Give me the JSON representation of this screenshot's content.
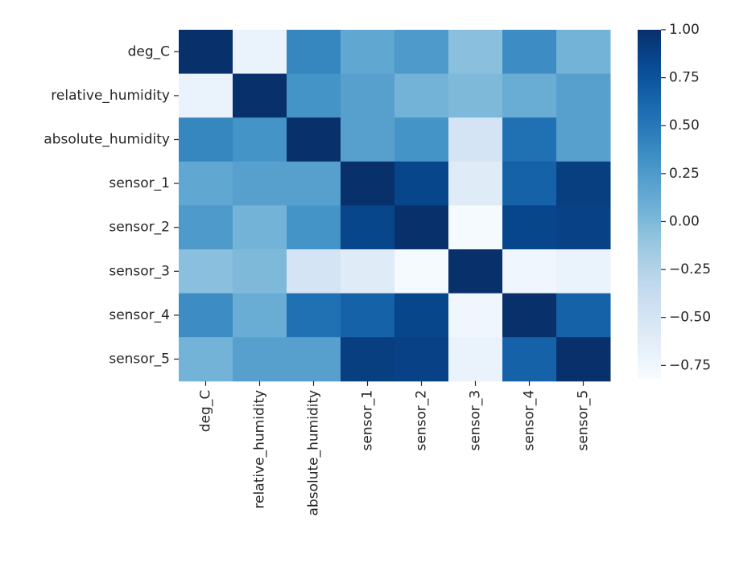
{
  "chart_data": {
    "type": "heatmap",
    "title": "",
    "xlabel": "",
    "ylabel": "",
    "row_labels": [
      "deg_C",
      "relative_humidity",
      "absolute_humidity",
      "sensor_1",
      "sensor_2",
      "sensor_3",
      "sensor_4",
      "sensor_5"
    ],
    "col_labels": [
      "deg_C",
      "relative_humidity",
      "absolute_humidity",
      "sensor_1",
      "sensor_2",
      "sensor_3",
      "sensor_4",
      "sensor_5"
    ],
    "values": [
      [
        1.0,
        -0.7,
        0.4,
        0.15,
        0.25,
        -0.05,
        0.35,
        0.05
      ],
      [
        -0.7,
        1.0,
        0.3,
        0.2,
        0.05,
        0.0,
        0.1,
        0.2
      ],
      [
        0.4,
        0.3,
        1.0,
        0.2,
        0.3,
        -0.5,
        0.55,
        0.2
      ],
      [
        0.15,
        0.2,
        0.2,
        1.0,
        0.85,
        -0.6,
        0.65,
        0.9
      ],
      [
        0.25,
        0.05,
        0.3,
        0.85,
        1.0,
        -0.8,
        0.85,
        0.88
      ],
      [
        -0.05,
        0.0,
        -0.5,
        -0.6,
        -0.8,
        1.0,
        -0.75,
        -0.7
      ],
      [
        0.35,
        0.1,
        0.55,
        0.65,
        0.85,
        -0.75,
        1.0,
        0.65
      ],
      [
        0.05,
        0.2,
        0.2,
        0.9,
        0.88,
        -0.7,
        0.65,
        1.0
      ]
    ],
    "colorbar": {
      "colormap": "Blues",
      "vmin": -0.82,
      "vmax": 1.0,
      "ticks": [
        1.0,
        0.75,
        0.5,
        0.25,
        0.0,
        -0.25,
        -0.5,
        -0.75
      ],
      "tick_labels": [
        "1.00",
        "0.75",
        "0.50",
        "0.25",
        "0.00",
        "−0.25",
        "−0.50",
        "−0.75"
      ]
    },
    "colors": {
      "low": "#f7fbff",
      "high": "#08306b"
    }
  }
}
